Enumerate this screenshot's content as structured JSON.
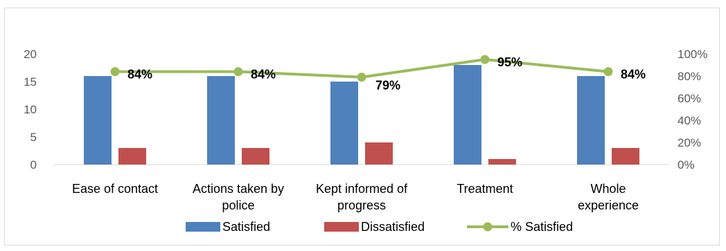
{
  "chart_data": {
    "type": "bar",
    "categories": [
      [
        "Ease of contact"
      ],
      [
        "Actions taken by",
        "police"
      ],
      [
        "Kept informed of",
        "progress"
      ],
      [
        "Treatment"
      ],
      [
        "Whole",
        "experience"
      ]
    ],
    "series": [
      {
        "name": "Satisfied",
        "kind": "bar",
        "axis": "left",
        "color": "#4f81bd",
        "values": [
          16,
          16,
          15,
          18,
          16
        ]
      },
      {
        "name": "Dissatisfied",
        "kind": "bar",
        "axis": "left",
        "color": "#c0504d",
        "values": [
          3,
          3,
          4,
          1,
          3
        ]
      },
      {
        "name": "% Satisfied",
        "kind": "line",
        "axis": "right",
        "color": "#9bbb59",
        "values": [
          84,
          84,
          79,
          95,
          84
        ],
        "labels": [
          "84%",
          "84%",
          "79%",
          "95%",
          "84%"
        ]
      }
    ],
    "y_left": {
      "min": 0,
      "max": 20,
      "ticks": [
        "0",
        "5",
        "10",
        "15",
        "20"
      ]
    },
    "y_right": {
      "min": 0,
      "max": 100,
      "ticks": [
        "0%",
        "20%",
        "40%",
        "60%",
        "80%",
        "100%"
      ]
    },
    "grid": false,
    "legend": "bottom"
  }
}
